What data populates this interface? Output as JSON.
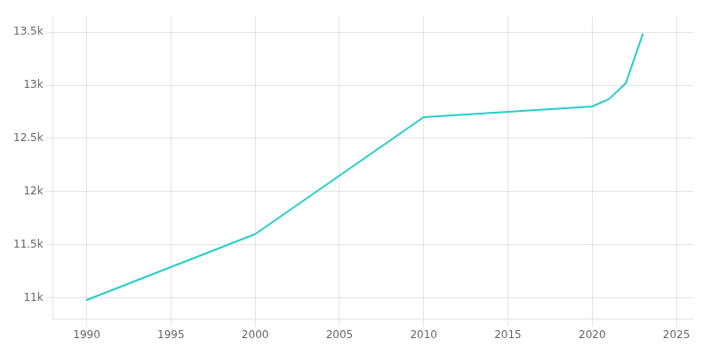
{
  "chart_data": {
    "type": "line",
    "x": [
      1990,
      2000,
      2010,
      2015,
      2020,
      2021,
      2022,
      2023
    ],
    "values": [
      10980,
      11600,
      12700,
      12750,
      12800,
      12870,
      13020,
      13480
    ],
    "color": "#27CEC8",
    "xlim": [
      1988,
      2026
    ],
    "xticks": [
      1990,
      1995,
      2000,
      2005,
      2010,
      2015,
      2020,
      2025
    ],
    "ylim": [
      10800,
      13650
    ],
    "yticks": [
      {
        "value": 11000,
        "label": "11k"
      },
      {
        "value": 11500,
        "label": "11.5k"
      },
      {
        "value": 12000,
        "label": "12k"
      },
      {
        "value": 12500,
        "label": "12.5k"
      },
      {
        "value": 13000,
        "label": "13k"
      },
      {
        "value": 13500,
        "label": "13.5k"
      }
    ],
    "grid": true
  }
}
